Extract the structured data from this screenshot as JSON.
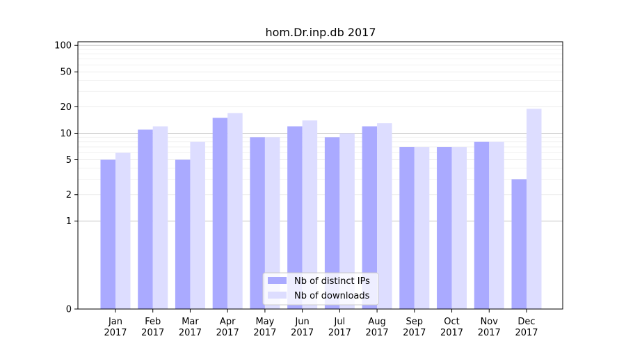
{
  "chart_data": {
    "type": "bar",
    "title": "hom.Dr.inp.db 2017",
    "xlabel": "",
    "ylabel": "",
    "yscale": "symlog",
    "yticks": [
      0,
      1,
      2,
      5,
      10,
      20,
      50,
      100
    ],
    "ylim": [
      0,
      110
    ],
    "grid": true,
    "legend_position": "bottom-center",
    "categories": [
      [
        "Jan",
        "2017"
      ],
      [
        "Feb",
        "2017"
      ],
      [
        "Mar",
        "2017"
      ],
      [
        "Apr",
        "2017"
      ],
      [
        "May",
        "2017"
      ],
      [
        "Jun",
        "2017"
      ],
      [
        "Jul",
        "2017"
      ],
      [
        "Aug",
        "2017"
      ],
      [
        "Sep",
        "2017"
      ],
      [
        "Oct",
        "2017"
      ],
      [
        "Nov",
        "2017"
      ],
      [
        "Dec",
        "2017"
      ]
    ],
    "series": [
      {
        "name": "Nb of distinct IPs",
        "color": "#aaaaff",
        "values": [
          5,
          11,
          5,
          15,
          9,
          12,
          9,
          12,
          7,
          7,
          8,
          3
        ]
      },
      {
        "name": "Nb of downloads",
        "color": "#ddddff",
        "values": [
          6,
          12,
          8,
          17,
          9,
          14,
          10,
          13,
          7,
          7,
          8,
          19
        ]
      }
    ]
  }
}
